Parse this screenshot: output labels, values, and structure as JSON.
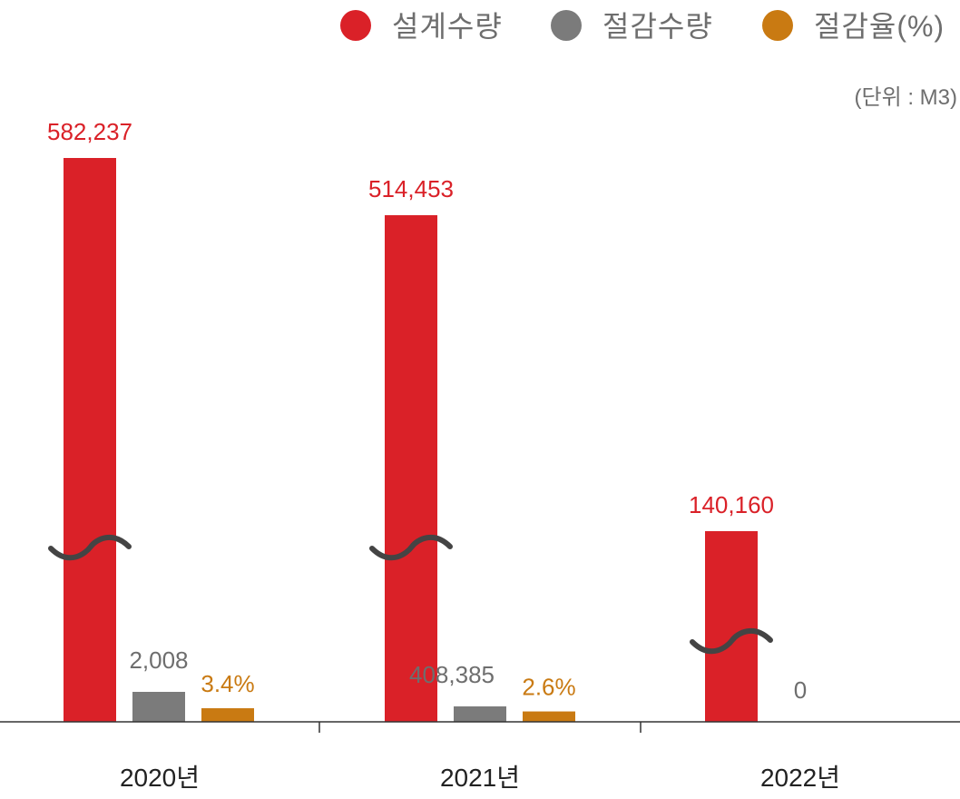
{
  "colors": {
    "design": "#DA2128",
    "saving": "#7B7B7B",
    "rate": "#C97A12",
    "break_mark": "#444444",
    "axis": "#333333",
    "text": "#222222",
    "muted": "#6e6e6e"
  },
  "legend": [
    {
      "label": "설계수량",
      "color": "#DA2128"
    },
    {
      "label": "절감수량",
      "color": "#7B7B7B"
    },
    {
      "label": "절감율(%)",
      "color": "#C97A12"
    }
  ],
  "unit_label": "(단위 : M3)",
  "chart_data": {
    "type": "bar",
    "categories": [
      "2020년",
      "2021년",
      "2022년"
    ],
    "series": [
      {
        "name": "설계수량",
        "color": "#DA2128",
        "values": [
          582237,
          514453,
          140160
        ],
        "labels": [
          "582,237",
          "514,453",
          "140,160"
        ],
        "axis_break": true
      },
      {
        "name": "절감수량",
        "color": "#7B7B7B",
        "values": [
          2008,
          408385,
          0
        ],
        "labels": [
          "2,008",
          "408,385",
          "0"
        ]
      },
      {
        "name": "절감율(%)",
        "color": "#C97A12",
        "values": [
          3.4,
          2.6,
          null
        ],
        "labels": [
          "3.4%",
          "2.6%",
          ""
        ]
      }
    ],
    "unit": "M3",
    "legend_position": "top-right",
    "grid": false
  }
}
